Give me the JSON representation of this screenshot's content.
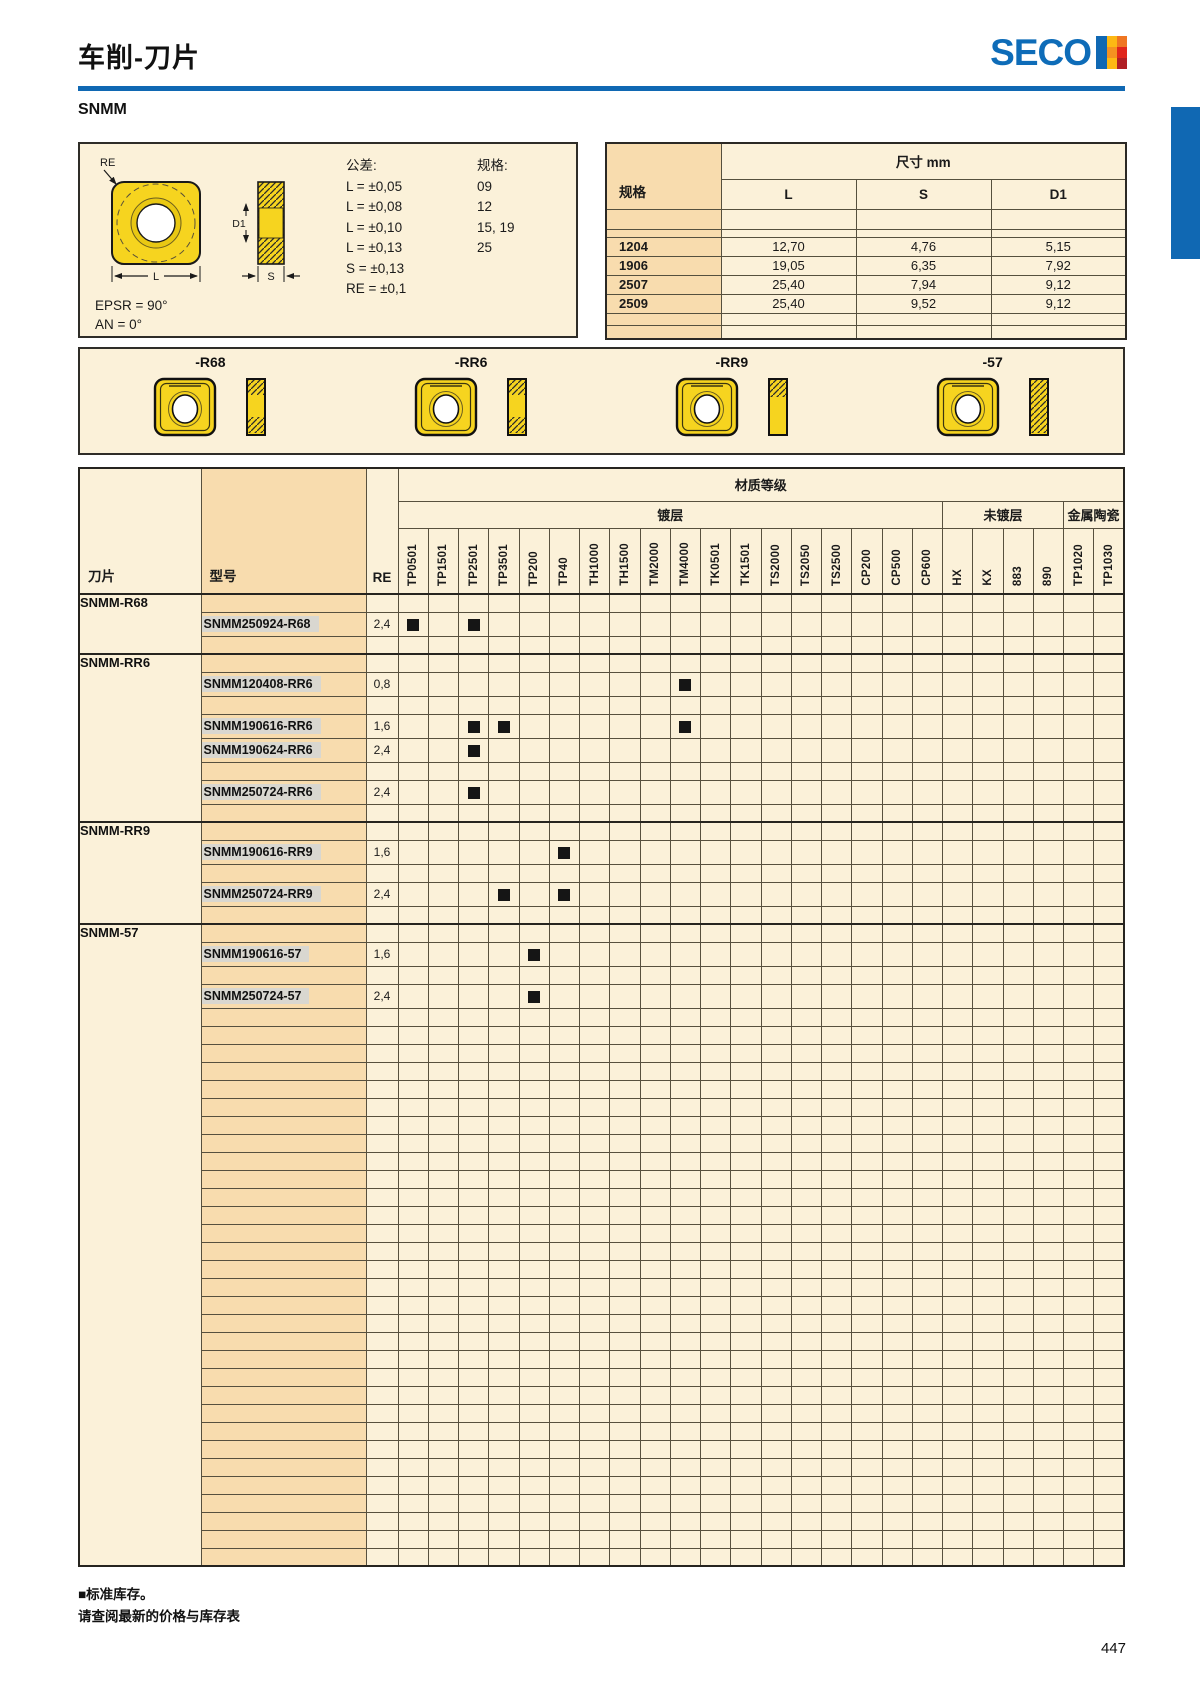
{
  "page": {
    "title": "车削-刀片",
    "section": "SNMM",
    "page_number": "447"
  },
  "brand": {
    "name": "SECO"
  },
  "colors": {
    "accent_blue": "#1068b3",
    "brand_blue": "#0e6cb8",
    "panel_cream": "#fbf1d9",
    "panel_orange": "#f8dcae",
    "insert_yellow": "#f6d41f",
    "stock_black": "#151515"
  },
  "info_panel": {
    "tolerance_title": "公差:",
    "tolerances": [
      "L = ±0,05",
      "L = ±0,08",
      "L = ±0,10",
      "L = ±0,13",
      "S = ±0,13",
      "RE = ±0,1"
    ],
    "sizes_title": "规格:",
    "sizes": [
      "09",
      "12",
      "15, 19",
      "25"
    ],
    "angle_notes": [
      "EPSR = 90°",
      "AN = 0°"
    ],
    "diagram_labels": {
      "re": "RE",
      "l": "L",
      "d1": "D1",
      "s": "S"
    }
  },
  "dimensions_table": {
    "group_header": "尺寸 mm",
    "spec_header": "规格",
    "columns": [
      "L",
      "S",
      "D1"
    ],
    "rows": [
      {
        "spec": "1204",
        "values": [
          "12,70",
          "4,76",
          "5,15"
        ]
      },
      {
        "spec": "1906",
        "values": [
          "19,05",
          "6,35",
          "7,92"
        ]
      },
      {
        "spec": "2507",
        "values": [
          "25,40",
          "7,94",
          "9,12"
        ]
      },
      {
        "spec": "2509",
        "values": [
          "25,40",
          "9,52",
          "9,12"
        ]
      }
    ]
  },
  "geometry_images": {
    "labels": [
      "-R68",
      "-RR6",
      "-RR9",
      "-57"
    ]
  },
  "grades_table": {
    "title": "材质等级",
    "grade_groups": [
      {
        "label": "镀层",
        "grades": [
          "TP0501",
          "TP1501",
          "TP2501",
          "TP3501",
          "TP200",
          "TP40",
          "TH1000",
          "TH1500",
          "TM2000",
          "TM4000",
          "TK0501",
          "TK1501",
          "TS2000",
          "TS2050",
          "TS2500",
          "CP200",
          "CP500",
          "CP600"
        ]
      },
      {
        "label": "未镀层",
        "grades": [
          "HX",
          "KX",
          "883",
          "890"
        ]
      },
      {
        "label": "金属陶瓷",
        "grades": [
          "TP1020",
          "TP1030"
        ]
      }
    ],
    "row_headers": {
      "insert": "刀片",
      "designation": "型号",
      "re": "RE"
    },
    "insert_groups": [
      {
        "name": "SNMM-R68",
        "rows": [
          {
            "designation": "SNMM250924-R68",
            "re": "2,4",
            "stock": [
              "TP0501",
              "TP2501"
            ]
          },
          {
            "spacer": true
          }
        ]
      },
      {
        "name": "SNMM-RR6",
        "rows": [
          {
            "designation": "SNMM120408-RR6",
            "re": "0,8",
            "stock": [
              "TM4000"
            ]
          },
          {
            "spacer": true
          },
          {
            "designation": "SNMM190616-RR6",
            "re": "1,6",
            "stock": [
              "TP2501",
              "TP3501",
              "TM4000"
            ]
          },
          {
            "designation": "SNMM190624-RR6",
            "re": "2,4",
            "stock": [
              "TP2501"
            ]
          },
          {
            "spacer": true
          },
          {
            "designation": "SNMM250724-RR6",
            "re": "2,4",
            "stock": [
              "TP2501"
            ]
          },
          {
            "spacer": true
          }
        ]
      },
      {
        "name": "SNMM-RR9",
        "rows": [
          {
            "designation": "SNMM190616-RR9",
            "re": "1,6",
            "stock": [
              "TP40"
            ]
          },
          {
            "spacer": true
          },
          {
            "designation": "SNMM250724-RR9",
            "re": "2,4",
            "stock": [
              "TP3501",
              "TP40"
            ]
          },
          {
            "spacer": true
          }
        ]
      },
      {
        "name": "SNMM-57",
        "rows": [
          {
            "designation": "SNMM190616-57",
            "re": "1,6",
            "stock": [
              "TP200"
            ]
          },
          {
            "spacer": true
          },
          {
            "designation": "SNMM250724-57",
            "re": "2,4",
            "stock": [
              "TP200"
            ]
          }
        ]
      }
    ]
  },
  "footnotes": {
    "line1": "■标准库存。",
    "line2": "请查阅最新的价格与库存表"
  }
}
